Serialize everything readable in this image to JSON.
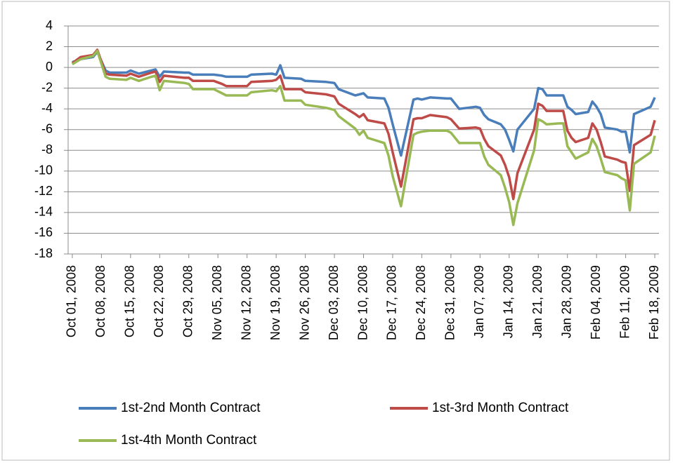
{
  "chart_data": {
    "type": "line",
    "x": [
      "2008-10-01",
      "2008-10-03",
      "2008-10-06",
      "2008-10-07",
      "2008-10-09",
      "2008-10-10",
      "2008-10-14",
      "2008-10-15",
      "2008-10-17",
      "2008-10-20",
      "2008-10-21",
      "2008-10-22",
      "2008-10-23",
      "2008-10-28",
      "2008-10-29",
      "2008-10-30",
      "2008-11-04",
      "2008-11-06",
      "2008-11-07",
      "2008-11-12",
      "2008-11-13",
      "2008-11-18",
      "2008-11-19",
      "2008-11-20",
      "2008-11-21",
      "2008-11-25",
      "2008-11-26",
      "2008-12-01",
      "2008-12-03",
      "2008-12-04",
      "2008-12-08",
      "2008-12-09",
      "2008-12-10",
      "2008-12-11",
      "2008-12-15",
      "2008-12-16",
      "2008-12-17",
      "2008-12-19",
      "2008-12-22",
      "2008-12-23",
      "2008-12-24",
      "2008-12-26",
      "2008-12-30",
      "2008-12-31",
      "2009-01-02",
      "2009-01-06",
      "2009-01-07",
      "2009-01-08",
      "2009-01-09",
      "2009-01-12",
      "2009-01-13",
      "2009-01-14",
      "2009-01-15",
      "2009-01-16",
      "2009-01-20",
      "2009-01-21",
      "2009-01-22",
      "2009-01-23",
      "2009-01-26",
      "2009-01-27",
      "2009-01-28",
      "2009-01-29",
      "2009-01-30",
      "2009-02-02",
      "2009-02-03",
      "2009-02-04",
      "2009-02-05",
      "2009-02-06",
      "2009-02-09",
      "2009-02-10",
      "2009-02-11",
      "2009-02-12",
      "2009-02-13",
      "2009-02-17",
      "2009-02-18"
    ],
    "series": [
      {
        "name": "1st-2nd Month Contract",
        "color": "#4a7ebb",
        "values": [
          0.5,
          0.8,
          1.0,
          1.5,
          -0.3,
          -0.5,
          -0.5,
          -0.3,
          -0.6,
          -0.3,
          -0.2,
          -0.9,
          -0.4,
          -0.5,
          -0.5,
          -0.7,
          -0.7,
          -0.8,
          -0.9,
          -0.9,
          -0.7,
          -0.6,
          -0.7,
          0.2,
          -1.0,
          -1.1,
          -1.3,
          -1.4,
          -1.5,
          -2.1,
          -2.7,
          -2.6,
          -2.5,
          -2.9,
          -3.0,
          -3.9,
          -5.5,
          -8.5,
          -3.1,
          -3.0,
          -3.1,
          -2.9,
          -3.0,
          -3.0,
          -4.0,
          -3.8,
          -3.9,
          -4.6,
          -5.0,
          -5.5,
          -6.0,
          -7.0,
          -8.1,
          -6.0,
          -4.0,
          -2.0,
          -2.1,
          -2.7,
          -2.7,
          -2.7,
          -3.8,
          -4.1,
          -4.5,
          -4.3,
          -3.3,
          -3.8,
          -4.5,
          -5.8,
          -6.0,
          -6.2,
          -6.2,
          -8.2,
          -4.5,
          -3.8,
          -2.9
        ]
      },
      {
        "name": "1st-3rd Month Contract",
        "color": "#be4b48",
        "values": [
          0.4,
          1.0,
          1.2,
          1.7,
          -0.6,
          -0.7,
          -0.8,
          -0.6,
          -0.9,
          -0.5,
          -0.4,
          -1.4,
          -0.8,
          -1.0,
          -1.0,
          -1.3,
          -1.3,
          -1.6,
          -1.8,
          -1.8,
          -1.4,
          -1.3,
          -1.2,
          -0.8,
          -2.1,
          -2.1,
          -2.4,
          -2.6,
          -2.8,
          -3.5,
          -4.5,
          -4.8,
          -4.5,
          -5.1,
          -5.4,
          -6.4,
          -8.2,
          -11.5,
          -5.0,
          -4.9,
          -4.9,
          -4.6,
          -4.8,
          -5.0,
          -5.9,
          -5.8,
          -5.9,
          -6.9,
          -7.6,
          -8.5,
          -9.4,
          -10.6,
          -12.7,
          -10.2,
          -6.0,
          -3.5,
          -3.7,
          -4.2,
          -4.2,
          -4.2,
          -6.1,
          -6.8,
          -7.2,
          -6.8,
          -5.4,
          -6.0,
          -7.2,
          -8.6,
          -8.9,
          -9.1,
          -9.2,
          -11.9,
          -7.5,
          -6.5,
          -5.1
        ]
      },
      {
        "name": "1st-4th Month Contract",
        "color": "#98b954",
        "values": [
          0.3,
          0.8,
          1.1,
          1.6,
          -0.9,
          -1.1,
          -1.2,
          -1.0,
          -1.3,
          -0.9,
          -0.8,
          -2.2,
          -1.3,
          -1.5,
          -1.6,
          -2.1,
          -2.1,
          -2.5,
          -2.7,
          -2.7,
          -2.4,
          -2.2,
          -2.3,
          -1.8,
          -3.2,
          -3.2,
          -3.6,
          -3.9,
          -4.1,
          -4.7,
          -5.9,
          -6.5,
          -6.1,
          -6.8,
          -7.3,
          -8.5,
          -10.5,
          -13.4,
          -6.5,
          -6.3,
          -6.2,
          -6.1,
          -6.1,
          -6.3,
          -7.3,
          -7.3,
          -7.3,
          -8.6,
          -9.4,
          -10.4,
          -11.6,
          -13.0,
          -15.2,
          -13.1,
          -8.0,
          -5.0,
          -5.2,
          -5.5,
          -5.4,
          -5.4,
          -7.6,
          -8.2,
          -8.8,
          -8.2,
          -6.9,
          -7.6,
          -8.8,
          -10.1,
          -10.4,
          -10.7,
          -10.9,
          -13.8,
          -9.3,
          -8.2,
          -6.6
        ]
      }
    ],
    "xlim": [
      "2008-09-30",
      "2009-02-19"
    ],
    "xticks": [
      {
        "value": "2008-10-01",
        "label": "Oct 01, 2008"
      },
      {
        "value": "2008-10-08",
        "label": "Oct 08, 2008"
      },
      {
        "value": "2008-10-15",
        "label": "Oct 15, 2008"
      },
      {
        "value": "2008-10-22",
        "label": "Oct 22, 2008"
      },
      {
        "value": "2008-10-29",
        "label": "Oct 29, 2008"
      },
      {
        "value": "2008-11-05",
        "label": "Nov 05, 2008"
      },
      {
        "value": "2008-11-12",
        "label": "Nov 12, 2008"
      },
      {
        "value": "2008-11-19",
        "label": "Nov 19, 2008"
      },
      {
        "value": "2008-11-26",
        "label": "Nov 26, 2008"
      },
      {
        "value": "2008-12-03",
        "label": "Dec 03, 2008"
      },
      {
        "value": "2008-12-10",
        "label": "Dec 10, 2008"
      },
      {
        "value": "2008-12-17",
        "label": "Dec 17, 2008"
      },
      {
        "value": "2008-12-24",
        "label": "Dec 24, 2008"
      },
      {
        "value": "2008-12-31",
        "label": "Dec 31, 2008"
      },
      {
        "value": "2009-01-07",
        "label": "Jan 07, 2009"
      },
      {
        "value": "2009-01-14",
        "label": "Jan 14, 2009"
      },
      {
        "value": "2009-01-21",
        "label": "Jan 21, 2009"
      },
      {
        "value": "2009-01-28",
        "label": "Jan 28, 2009"
      },
      {
        "value": "2009-02-04",
        "label": "Feb 04, 2009"
      },
      {
        "value": "2009-02-11",
        "label": "Feb 11, 2009"
      },
      {
        "value": "2009-02-18",
        "label": "Feb 18, 2009"
      }
    ],
    "ylim": [
      -18,
      4
    ],
    "yticks": [
      4,
      2,
      0,
      -2,
      -4,
      -6,
      -8,
      -10,
      -12,
      -14,
      -16,
      -18
    ],
    "grid": true
  }
}
